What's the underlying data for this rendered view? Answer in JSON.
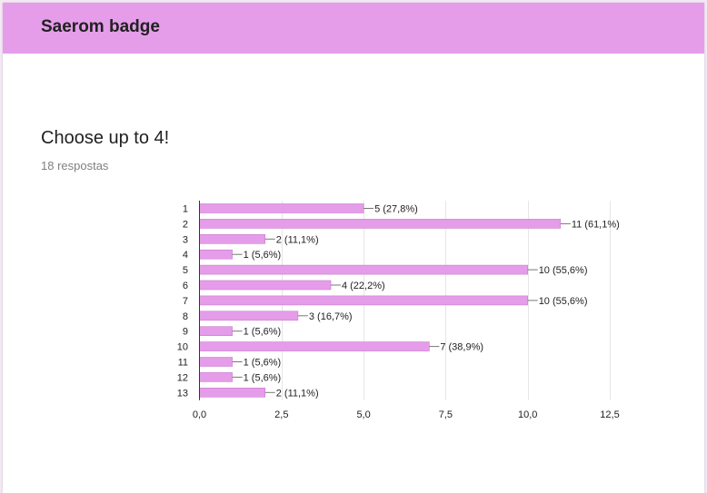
{
  "header": {
    "title": "Saerom badge"
  },
  "question": {
    "title": "Choose up to 4!",
    "responses": "18 respostas"
  },
  "colors": {
    "accent": "#e59dea",
    "bar": "#e59dea",
    "bar_stroke": "#c77bcd"
  },
  "chart_data": {
    "type": "bar",
    "orientation": "horizontal",
    "categories": [
      "1",
      "2",
      "3",
      "4",
      "5",
      "6",
      "7",
      "8",
      "9",
      "10",
      "11",
      "12",
      "13"
    ],
    "values": [
      5,
      11,
      2,
      1,
      10,
      4,
      10,
      3,
      1,
      7,
      1,
      1,
      2
    ],
    "data_labels": [
      "5 (27,8%)",
      "11 (61,1%)",
      "2 (11,1%)",
      "1 (5,6%)",
      "10 (55,6%)",
      "4 (22,2%)",
      "10 (55,6%)",
      "3 (16,7%)",
      "1 (5,6%)",
      "7 (38,9%)",
      "1 (5,6%)",
      "1 (5,6%)",
      "2 (11,1%)"
    ],
    "x_ticks": [
      0,
      2.5,
      5,
      7.5,
      10,
      12.5
    ],
    "x_tick_labels": [
      "0,0",
      "2,5",
      "5,0",
      "7,5",
      "10,0",
      "12,5"
    ],
    "xlim": [
      0,
      12.5
    ],
    "grid": true,
    "title": "",
    "xlabel": "",
    "ylabel": ""
  }
}
